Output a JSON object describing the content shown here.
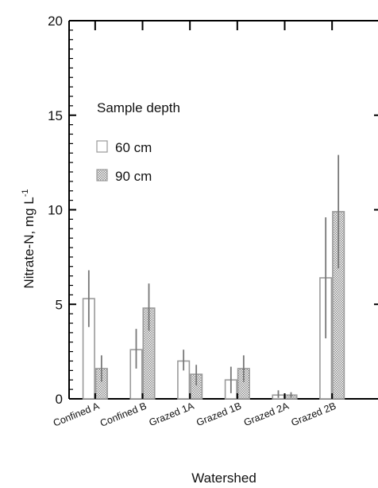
{
  "chart_data": {
    "type": "bar",
    "title": "",
    "xlabel": "Watershed",
    "ylabel_main": "Nitrate-N, mg L",
    "ylabel_sup": "-1",
    "ylim": [
      0,
      20
    ],
    "yticks": [
      0,
      5,
      10,
      15,
      20
    ],
    "categories": [
      "Confined A",
      "Confined B",
      "Grazed 1A",
      "Grazed 1B",
      "Grazed 2A",
      "Grazed 2B"
    ],
    "legend": {
      "title": "Sample depth",
      "placement": "upper-left"
    },
    "series": [
      {
        "name": "60 cm",
        "pattern": "open",
        "values": [
          5.3,
          2.6,
          2.0,
          1.0,
          0.2,
          6.4
        ],
        "err_low": [
          3.8,
          1.6,
          1.5,
          0.3,
          0.05,
          3.2
        ],
        "err_high": [
          6.8,
          3.7,
          2.6,
          1.7,
          0.45,
          9.6
        ]
      },
      {
        "name": "90 cm",
        "pattern": "crosshatch",
        "values": [
          1.6,
          4.8,
          1.3,
          1.6,
          0.2,
          9.9
        ],
        "err_low": [
          0.9,
          3.6,
          0.7,
          0.9,
          0.05,
          6.9
        ],
        "err_high": [
          2.3,
          6.1,
          1.8,
          2.3,
          0.35,
          12.9
        ]
      }
    ],
    "colors": {
      "bar_edge": "#9a9a9a",
      "error_bar": "#777777",
      "axis": "#000000",
      "hatch_fill": "#b5b5b5"
    }
  }
}
